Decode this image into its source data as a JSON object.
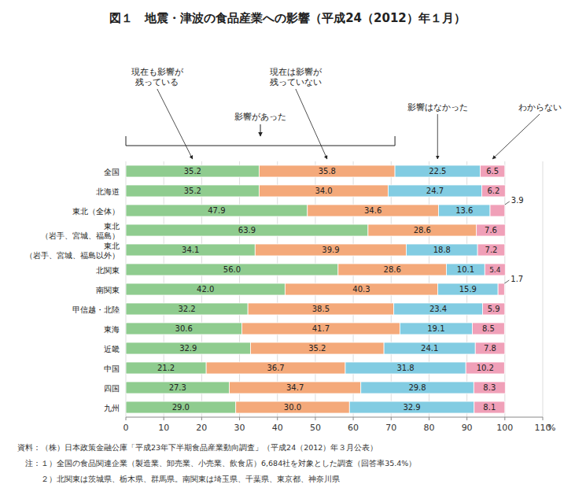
{
  "chart_data": {
    "type": "bar",
    "orientation": "horizontal",
    "stacked": true,
    "data_labels": true,
    "grid": true,
    "title": "図１　地震・津波の食品産業への影響（平成24（2012）年１月）",
    "xlabel": "%",
    "annotations": [
      "影響があった"
    ],
    "footnotes": [
      "資料：（株）日本政策金融公庫「平成23年下半期食品産業動向調査」（平成24（2012）年３月公表）",
      "　注：１）全国の食品関連企業（製造業、卸売業、小売業、飲食店）6,684社を対象とした調査（回答率35.4%）",
      "　　　２）北関東は茨城県、栃木県、群馬県。南関東は埼玉県、千葉県、東京都、神奈川県"
    ],
    "categories": [
      "全国",
      "北海道",
      "東北（全体）",
      "東北\n（岩手、宮城、福島）",
      "東北\n（岩手、宮城、福島以外）",
      "北関東",
      "南関東",
      "甲信越・北陸",
      "東海",
      "近畿",
      "中国",
      "四国",
      "九州"
    ],
    "series": [
      {
        "name": "現在も影響が\n残っている",
        "color": "#8fcc8f",
        "values": [
          35.2,
          35.2,
          47.9,
          63.9,
          34.1,
          56.0,
          42.0,
          32.2,
          30.6,
          32.9,
          21.2,
          27.3,
          29.0
        ]
      },
      {
        "name": "現在は影響が\n残っていない",
        "color": "#f4a97a",
        "values": [
          35.8,
          34.0,
          34.6,
          28.6,
          39.9,
          28.6,
          40.3,
          38.5,
          41.7,
          35.2,
          36.7,
          34.7,
          30.0
        ]
      },
      {
        "name": "影響はなかった",
        "color": "#82cce2",
        "values": [
          22.5,
          24.7,
          13.6,
          0.0,
          18.8,
          10.1,
          15.9,
          23.4,
          19.1,
          24.1,
          31.8,
          29.8,
          32.9
        ]
      },
      {
        "name": "わからない",
        "color": "#f0a0b8",
        "values": [
          6.5,
          6.2,
          3.9,
          7.6,
          7.2,
          5.4,
          1.7,
          5.9,
          8.5,
          7.8,
          10.2,
          8.3,
          8.1
        ]
      }
    ],
    "xlim": [
      0,
      110
    ],
    "xticks": [
      0,
      10,
      20,
      30,
      40,
      50,
      60,
      70,
      80,
      90,
      100,
      110
    ]
  }
}
